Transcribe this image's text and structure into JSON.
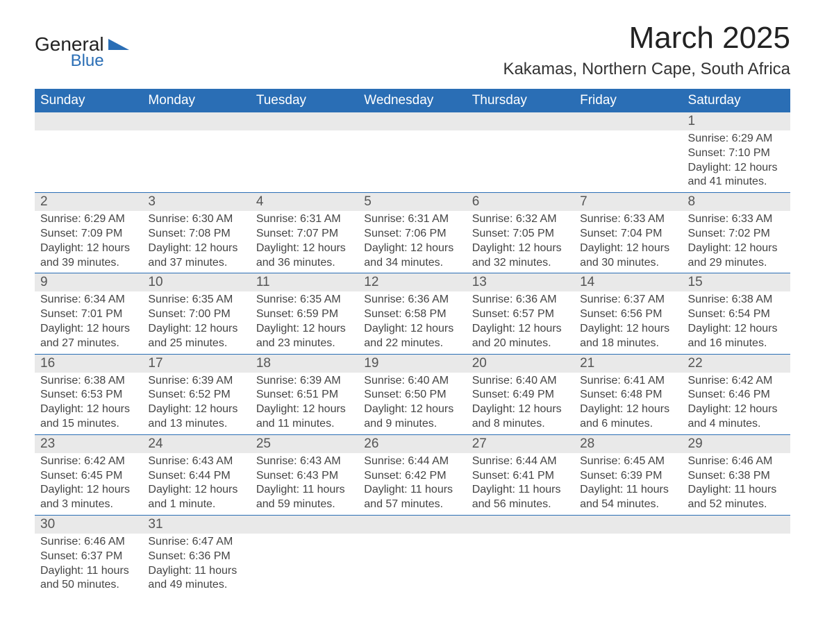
{
  "logo": {
    "text1": "General",
    "text2": "Blue",
    "text_color": "#222222",
    "accent_color": "#2a6eb5"
  },
  "header": {
    "title": "March 2025",
    "location": "Kakamas, Northern Cape, South Africa",
    "title_color": "#222222",
    "title_fontsize": 44,
    "location_fontsize": 24
  },
  "calendar": {
    "header_bg": "#2a6eb5",
    "header_fg": "#ffffff",
    "daynum_bg": "#e9e9e9",
    "border_color": "#2a6eb5",
    "text_color": "#444444",
    "cell_fontsize": 16,
    "daynum_fontsize": 19,
    "days_of_week": [
      "Sunday",
      "Monday",
      "Tuesday",
      "Wednesday",
      "Thursday",
      "Friday",
      "Saturday"
    ],
    "weeks": [
      [
        null,
        null,
        null,
        null,
        null,
        null,
        {
          "n": "1",
          "sunrise": "6:29 AM",
          "sunset": "7:10 PM",
          "daylight": "12 hours and 41 minutes."
        }
      ],
      [
        {
          "n": "2",
          "sunrise": "6:29 AM",
          "sunset": "7:09 PM",
          "daylight": "12 hours and 39 minutes."
        },
        {
          "n": "3",
          "sunrise": "6:30 AM",
          "sunset": "7:08 PM",
          "daylight": "12 hours and 37 minutes."
        },
        {
          "n": "4",
          "sunrise": "6:31 AM",
          "sunset": "7:07 PM",
          "daylight": "12 hours and 36 minutes."
        },
        {
          "n": "5",
          "sunrise": "6:31 AM",
          "sunset": "7:06 PM",
          "daylight": "12 hours and 34 minutes."
        },
        {
          "n": "6",
          "sunrise": "6:32 AM",
          "sunset": "7:05 PM",
          "daylight": "12 hours and 32 minutes."
        },
        {
          "n": "7",
          "sunrise": "6:33 AM",
          "sunset": "7:04 PM",
          "daylight": "12 hours and 30 minutes."
        },
        {
          "n": "8",
          "sunrise": "6:33 AM",
          "sunset": "7:02 PM",
          "daylight": "12 hours and 29 minutes."
        }
      ],
      [
        {
          "n": "9",
          "sunrise": "6:34 AM",
          "sunset": "7:01 PM",
          "daylight": "12 hours and 27 minutes."
        },
        {
          "n": "10",
          "sunrise": "6:35 AM",
          "sunset": "7:00 PM",
          "daylight": "12 hours and 25 minutes."
        },
        {
          "n": "11",
          "sunrise": "6:35 AM",
          "sunset": "6:59 PM",
          "daylight": "12 hours and 23 minutes."
        },
        {
          "n": "12",
          "sunrise": "6:36 AM",
          "sunset": "6:58 PM",
          "daylight": "12 hours and 22 minutes."
        },
        {
          "n": "13",
          "sunrise": "6:36 AM",
          "sunset": "6:57 PM",
          "daylight": "12 hours and 20 minutes."
        },
        {
          "n": "14",
          "sunrise": "6:37 AM",
          "sunset": "6:56 PM",
          "daylight": "12 hours and 18 minutes."
        },
        {
          "n": "15",
          "sunrise": "6:38 AM",
          "sunset": "6:54 PM",
          "daylight": "12 hours and 16 minutes."
        }
      ],
      [
        {
          "n": "16",
          "sunrise": "6:38 AM",
          "sunset": "6:53 PM",
          "daylight": "12 hours and 15 minutes."
        },
        {
          "n": "17",
          "sunrise": "6:39 AM",
          "sunset": "6:52 PM",
          "daylight": "12 hours and 13 minutes."
        },
        {
          "n": "18",
          "sunrise": "6:39 AM",
          "sunset": "6:51 PM",
          "daylight": "12 hours and 11 minutes."
        },
        {
          "n": "19",
          "sunrise": "6:40 AM",
          "sunset": "6:50 PM",
          "daylight": "12 hours and 9 minutes."
        },
        {
          "n": "20",
          "sunrise": "6:40 AM",
          "sunset": "6:49 PM",
          "daylight": "12 hours and 8 minutes."
        },
        {
          "n": "21",
          "sunrise": "6:41 AM",
          "sunset": "6:48 PM",
          "daylight": "12 hours and 6 minutes."
        },
        {
          "n": "22",
          "sunrise": "6:42 AM",
          "sunset": "6:46 PM",
          "daylight": "12 hours and 4 minutes."
        }
      ],
      [
        {
          "n": "23",
          "sunrise": "6:42 AM",
          "sunset": "6:45 PM",
          "daylight": "12 hours and 3 minutes."
        },
        {
          "n": "24",
          "sunrise": "6:43 AM",
          "sunset": "6:44 PM",
          "daylight": "12 hours and 1 minute."
        },
        {
          "n": "25",
          "sunrise": "6:43 AM",
          "sunset": "6:43 PM",
          "daylight": "11 hours and 59 minutes."
        },
        {
          "n": "26",
          "sunrise": "6:44 AM",
          "sunset": "6:42 PM",
          "daylight": "11 hours and 57 minutes."
        },
        {
          "n": "27",
          "sunrise": "6:44 AM",
          "sunset": "6:41 PM",
          "daylight": "11 hours and 56 minutes."
        },
        {
          "n": "28",
          "sunrise": "6:45 AM",
          "sunset": "6:39 PM",
          "daylight": "11 hours and 54 minutes."
        },
        {
          "n": "29",
          "sunrise": "6:46 AM",
          "sunset": "6:38 PM",
          "daylight": "11 hours and 52 minutes."
        }
      ],
      [
        {
          "n": "30",
          "sunrise": "6:46 AM",
          "sunset": "6:37 PM",
          "daylight": "11 hours and 50 minutes."
        },
        {
          "n": "31",
          "sunrise": "6:47 AM",
          "sunset": "6:36 PM",
          "daylight": "11 hours and 49 minutes."
        },
        null,
        null,
        null,
        null,
        null
      ]
    ],
    "labels": {
      "sunrise": "Sunrise:",
      "sunset": "Sunset:",
      "daylight": "Daylight:"
    }
  }
}
